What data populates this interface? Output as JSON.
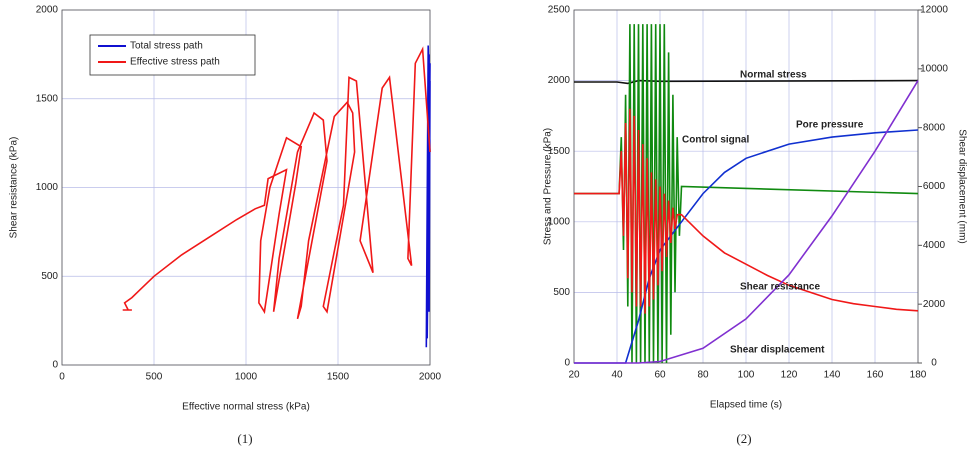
{
  "chart_data": [
    {
      "type": "line",
      "xlabel": "Effective normal stress (kPa)",
      "ylabel": "Shear resistance (kPa)",
      "caption": "(1)",
      "xlim": [
        0,
        2000
      ],
      "xticks": [
        0,
        500,
        1000,
        1500,
        2000
      ],
      "ylim": [
        0,
        2000
      ],
      "yticks": [
        0,
        500,
        1000,
        1500,
        2000
      ],
      "grid": true,
      "legend": "upper left",
      "series": [
        {
          "name": "Total stress path",
          "color": "#1010d0",
          "x": [
            2000,
            1990,
            1980,
            1995,
            1985,
            2000,
            1990,
            2000,
            1995
          ],
          "values": [
            1200,
            1800,
            100,
            1750,
            150,
            1700,
            300,
            1600,
            300
          ]
        },
        {
          "name": "Effective stress path",
          "color": "#f01818",
          "x": [
            2000,
            1960,
            1920,
            1880,
            1900,
            1780,
            1740,
            1620,
            1690,
            1600,
            1560,
            1530,
            1420,
            1440,
            1590,
            1580,
            1550,
            1480,
            1340,
            1300,
            1280,
            1440,
            1420,
            1370,
            1280,
            1180,
            1150,
            1270,
            1300,
            1220,
            1130,
            1080,
            1070,
            1100,
            1180,
            1220,
            1120,
            1100,
            1050,
            950,
            800,
            650,
            500,
            420,
            380,
            340,
            360,
            330,
            380
          ],
          "values": [
            1200,
            1780,
            1700,
            600,
            560,
            1620,
            1560,
            700,
            520,
            1600,
            1620,
            900,
            330,
            300,
            1200,
            1420,
            1480,
            1400,
            700,
            330,
            260,
            1150,
            1380,
            1420,
            1200,
            600,
            300,
            1020,
            1230,
            1280,
            1000,
            700,
            350,
            300,
            850,
            1100,
            1050,
            900,
            880,
            820,
            720,
            620,
            500,
            420,
            380,
            350,
            310,
            310,
            310
          ]
        }
      ]
    },
    {
      "type": "line",
      "xlabel": "Elapsed time (s)",
      "ylabel": "Stress and Pressure (kPa)",
      "y2label": "Shear displacement (mm)",
      "caption": "(2)",
      "xlim": [
        20,
        180
      ],
      "xticks": [
        20,
        40,
        60,
        80,
        100,
        120,
        140,
        160,
        180
      ],
      "ylim": [
        0,
        2500
      ],
      "yticks": [
        0,
        500,
        1000,
        1500,
        2000,
        2500
      ],
      "y2lim": [
        0,
        12000
      ],
      "y2ticks": [
        0,
        2000,
        4000,
        6000,
        8000,
        10000,
        12000
      ],
      "grid": true,
      "series": [
        {
          "name": "Normal stress",
          "color": "#111111",
          "x": [
            20,
            40,
            45,
            50,
            60,
            180
          ],
          "values": [
            1990,
            1990,
            1980,
            2000,
            1995,
            2000
          ]
        },
        {
          "name": "Control signal",
          "color": "#108a10",
          "x": [
            20,
            41,
            42,
            43,
            44,
            45,
            46,
            47,
            48,
            49,
            50,
            51,
            52,
            53,
            54,
            55,
            56,
            57,
            58,
            59,
            60,
            61,
            62,
            63,
            64,
            65,
            66,
            67,
            68,
            69,
            70,
            180
          ],
          "values": [
            1200,
            1200,
            1600,
            800,
            1900,
            400,
            2400,
            0,
            2400,
            0,
            2400,
            0,
            2400,
            0,
            2400,
            0,
            2400,
            0,
            2400,
            0,
            2400,
            0,
            2400,
            0,
            2200,
            200,
            1900,
            500,
            1600,
            900,
            1250,
            1200
          ]
        },
        {
          "name": "Pore pressure",
          "color": "#1030d0",
          "x": [
            20,
            44,
            50,
            55,
            60,
            70,
            80,
            90,
            100,
            120,
            140,
            160,
            180
          ],
          "values": [
            0,
            0,
            300,
            600,
            800,
            1000,
            1200,
            1350,
            1450,
            1550,
            1600,
            1630,
            1650
          ]
        },
        {
          "name": "Shear resistance",
          "color": "#f01818",
          "x": [
            20,
            41,
            42,
            43,
            44,
            45,
            46,
            47,
            48,
            49,
            50,
            51,
            52,
            53,
            54,
            55,
            56,
            57,
            58,
            59,
            60,
            61,
            62,
            63,
            64,
            65,
            66,
            67,
            68,
            70,
            80,
            90,
            100,
            110,
            120,
            130,
            140,
            150,
            160,
            170,
            180
          ],
          "values": [
            1200,
            1200,
            1500,
            900,
            1700,
            600,
            1800,
            500,
            1750,
            400,
            1650,
            400,
            1550,
            350,
            1450,
            400,
            1350,
            450,
            1300,
            550,
            1250,
            650,
            1200,
            750,
            1150,
            850,
            1100,
            950,
            1050,
            1050,
            900,
            780,
            700,
            620,
            550,
            500,
            450,
            420,
            400,
            380,
            370
          ]
        },
        {
          "name": "Shear displacement",
          "color": "#8030d0",
          "axis": "y2",
          "x": [
            20,
            50,
            60,
            80,
            100,
            120,
            140,
            160,
            180
          ],
          "values": [
            0,
            0,
            50,
            500,
            1500,
            3000,
            5000,
            7200,
            9600
          ]
        }
      ]
    }
  ]
}
